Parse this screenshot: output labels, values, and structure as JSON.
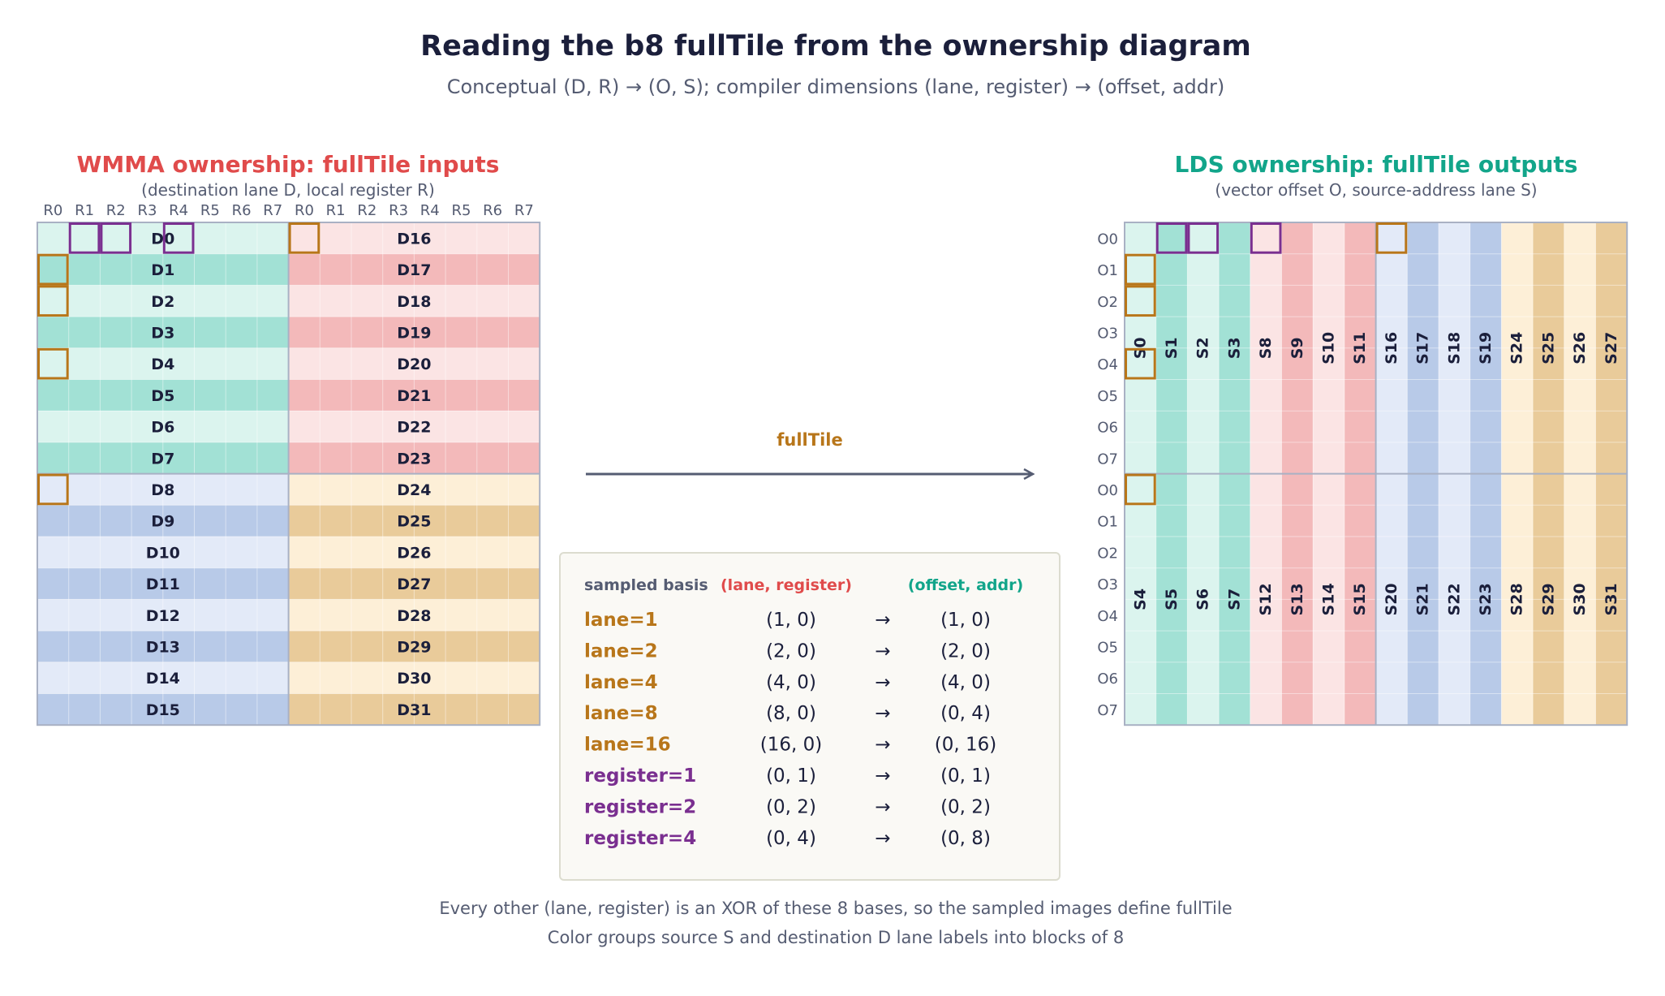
{
  "title": "Reading the b8 fullTile from the ownership diagram",
  "subtitle": "Conceptual (D, R) → (O, S); compiler dimensions (lane, register) → (offset, addr)",
  "colors": {
    "red": "#e04b4b",
    "teal": "#12a58a",
    "orange": "#b8761a",
    "purple": "#7a2f90",
    "ink": "#1b1f3b",
    "muted": "#555c72",
    "group_light": [
      "#dbf4ee",
      "#fbe4e4",
      "#e3eaf8",
      "#fdefd7"
    ],
    "group_dark": [
      "#a2e1d5",
      "#f3b9ba",
      "#b8cae8",
      "#e9cb9a"
    ]
  },
  "left_panel": {
    "title": "WMMA ownership: fullTile inputs",
    "subtitle": "(destination lane D, local register R)",
    "col_labels": [
      "R0",
      "R1",
      "R2",
      "R3",
      "R4",
      "R5",
      "R6",
      "R7",
      "R0",
      "R1",
      "R2",
      "R3",
      "R4",
      "R5",
      "R6",
      "R7"
    ],
    "left_lanes": [
      "D0",
      "D1",
      "D2",
      "D3",
      "D4",
      "D5",
      "D6",
      "D7",
      "D8",
      "D9",
      "D10",
      "D11",
      "D12",
      "D13",
      "D14",
      "D15"
    ],
    "right_lanes": [
      "D16",
      "D17",
      "D18",
      "D19",
      "D20",
      "D21",
      "D22",
      "D23",
      "D24",
      "D25",
      "D26",
      "D27",
      "D28",
      "D29",
      "D30",
      "D31"
    ],
    "highlights": [
      {
        "row": 0,
        "col": 1,
        "kind": "register"
      },
      {
        "row": 0,
        "col": 2,
        "kind": "register"
      },
      {
        "row": 0,
        "col": 4,
        "kind": "register"
      },
      {
        "row": 0,
        "col": 8,
        "kind": "lane"
      },
      {
        "row": 1,
        "col": 0,
        "kind": "lane"
      },
      {
        "row": 2,
        "col": 0,
        "kind": "lane"
      },
      {
        "row": 4,
        "col": 0,
        "kind": "lane"
      },
      {
        "row": 8,
        "col": 0,
        "kind": "lane"
      }
    ]
  },
  "arrow": {
    "label": "fullTile"
  },
  "right_panel": {
    "title": "LDS ownership: fullTile outputs",
    "subtitle": "(vector offset O, source-address lane S)",
    "row_labels": [
      "O0",
      "O1",
      "O2",
      "O3",
      "O4",
      "O5",
      "O6",
      "O7",
      "O0",
      "O1",
      "O2",
      "O3",
      "O4",
      "O5",
      "O6",
      "O7"
    ],
    "top_lanes": [
      "S0",
      "S1",
      "S2",
      "S3",
      "S8",
      "S9",
      "S10",
      "S11",
      "S16",
      "S17",
      "S18",
      "S19",
      "S24",
      "S25",
      "S26",
      "S27"
    ],
    "bottom_lanes": [
      "S4",
      "S5",
      "S6",
      "S7",
      "S12",
      "S13",
      "S14",
      "S15",
      "S20",
      "S21",
      "S22",
      "S23",
      "S28",
      "S29",
      "S30",
      "S31"
    ],
    "highlights": [
      {
        "row": 0,
        "col": 1,
        "kind": "register"
      },
      {
        "row": 0,
        "col": 2,
        "kind": "register"
      },
      {
        "row": 0,
        "col": 4,
        "kind": "register"
      },
      {
        "row": 0,
        "col": 8,
        "kind": "lane"
      },
      {
        "row": 1,
        "col": 0,
        "kind": "lane"
      },
      {
        "row": 2,
        "col": 0,
        "kind": "lane"
      },
      {
        "row": 4,
        "col": 0,
        "kind": "lane"
      },
      {
        "row": 8,
        "col": 0,
        "kind": "lane"
      }
    ]
  },
  "basis_table": {
    "header_a": "sampled basis",
    "header_b": "(lane, register)",
    "header_c": "(offset, addr)",
    "arrow_glyph": "→",
    "rows": [
      {
        "key": "lane=1",
        "kind": "lane",
        "input": "(1, 0)",
        "output": "(1, 0)"
      },
      {
        "key": "lane=2",
        "kind": "lane",
        "input": "(2, 0)",
        "output": "(2, 0)"
      },
      {
        "key": "lane=4",
        "kind": "lane",
        "input": "(4, 0)",
        "output": "(4, 0)"
      },
      {
        "key": "lane=8",
        "kind": "lane",
        "input": "(8, 0)",
        "output": "(0, 4)"
      },
      {
        "key": "lane=16",
        "kind": "lane",
        "input": "(16, 0)",
        "output": "(0, 16)"
      },
      {
        "key": "register=1",
        "kind": "register",
        "input": "(0, 1)",
        "output": "(0, 1)"
      },
      {
        "key": "register=2",
        "kind": "register",
        "input": "(0, 2)",
        "output": "(0, 2)"
      },
      {
        "key": "register=4",
        "kind": "register",
        "input": "(0, 4)",
        "output": "(0, 8)"
      }
    ]
  },
  "footnotes": [
    "Every other (lane, register) is an XOR of these 8 bases, so the sampled images define fullTile",
    "Color groups source S and destination D lane labels into blocks of 8"
  ]
}
